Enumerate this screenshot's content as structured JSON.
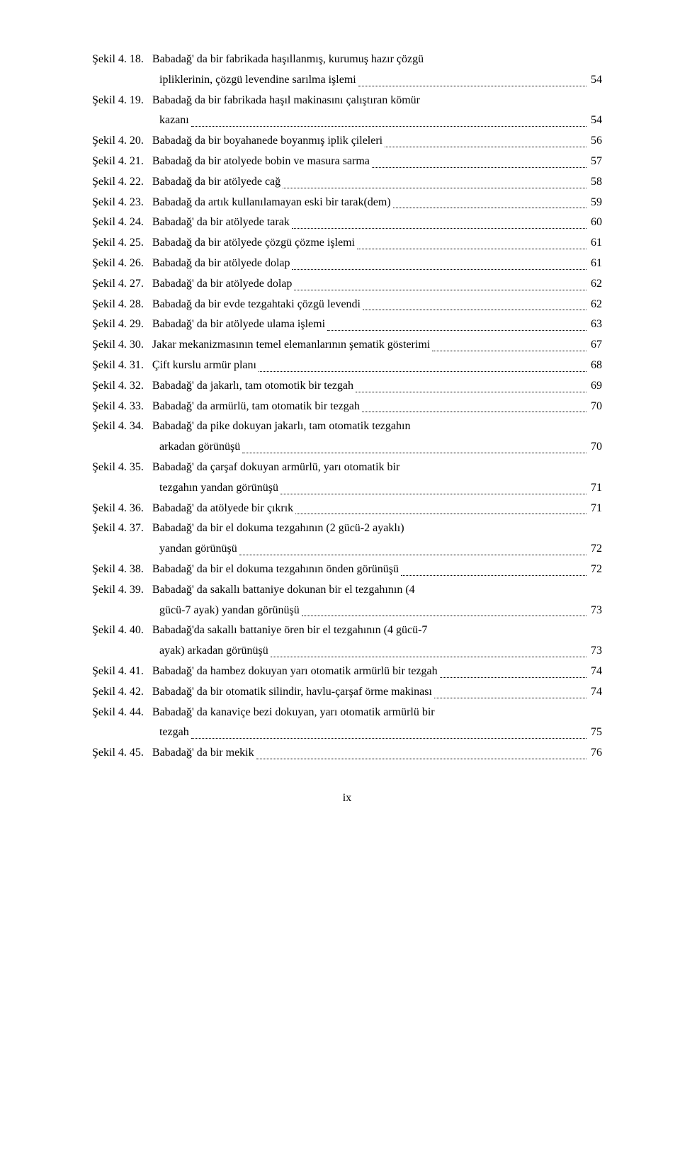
{
  "entries": [
    {
      "label": "Şekil 4. 18.",
      "lines": [
        "Babadağ' da bir fabrikada haşıllanmış, kurumuş hazır çözgü",
        "ipliklerinin, çözgü levendine sarılma işlemi"
      ],
      "page": "54"
    },
    {
      "label": "Şekil 4. 19.",
      "lines": [
        "Babadağ da bir fabrikada haşıl makinasını çalıştıran kömür",
        "kazanı"
      ],
      "page": "54"
    },
    {
      "label": "Şekil 4. 20.",
      "lines": [
        "Babadağ da bir boyahanede boyanmış iplik çileleri"
      ],
      "page": "56"
    },
    {
      "label": "Şekil 4. 21.",
      "lines": [
        "Babadağ da bir atolyede bobin ve masura sarma"
      ],
      "page": "57"
    },
    {
      "label": "Şekil 4. 22.",
      "lines": [
        "Babadağ da bir atölyede cağ"
      ],
      "page": "58"
    },
    {
      "label": "Şekil 4. 23.",
      "lines": [
        "Babadağ da artık kullanılamayan eski bir tarak(dem)"
      ],
      "page": "59"
    },
    {
      "label": "Şekil 4. 24.",
      "lines": [
        "Babadağ' da bir atölyede tarak"
      ],
      "page": "60"
    },
    {
      "label": "Şekil 4. 25.",
      "lines": [
        "Babadağ da bir atölyede çözgü çözme işlemi"
      ],
      "page": "61"
    },
    {
      "label": "Şekil 4. 26.",
      "lines": [
        "Babadağ da bir atölyede dolap"
      ],
      "page": "61"
    },
    {
      "label": "Şekil 4. 27.",
      "lines": [
        "Babadağ' da bir atölyede dolap"
      ],
      "page": "62"
    },
    {
      "label": "Şekil 4. 28.",
      "lines": [
        "Babadağ da bir evde tezgahtaki çözgü levendi"
      ],
      "page": "62"
    },
    {
      "label": "Şekil 4. 29.",
      "lines": [
        "Babadağ' da bir atölyede ulama işlemi"
      ],
      "page": "63"
    },
    {
      "label": "Şekil 4. 30.",
      "lines": [
        "Jakar mekanizmasının temel elemanlarının şematik gösterimi"
      ],
      "page": "67"
    },
    {
      "label": "Şekil 4. 31.",
      "lines": [
        "Çift kurslu armür planı"
      ],
      "page": "68"
    },
    {
      "label": "Şekil 4. 32.",
      "lines": [
        "Babadağ' da jakarlı, tam otomotik bir tezgah"
      ],
      "page": "69"
    },
    {
      "label": "Şekil 4. 33.",
      "lines": [
        "Babadağ' da armürlü, tam otomatik bir tezgah"
      ],
      "page": "70"
    },
    {
      "label": "Şekil 4. 34.",
      "lines": [
        "Babadağ' da pike dokuyan jakarlı, tam otomatik tezgahın",
        "arkadan görünüşü"
      ],
      "page": "70"
    },
    {
      "label": "Şekil 4. 35.",
      "lines": [
        "Babadağ' da çarşaf dokuyan armürlü, yarı otomatik  bir",
        "tezgahın yandan görünüşü"
      ],
      "page": "71"
    },
    {
      "label": "Şekil 4. 36.",
      "lines": [
        "Babadağ' da atölyede bir çıkrık"
      ],
      "page": "71"
    },
    {
      "label": "Şekil 4. 37.",
      "lines": [
        "Babadağ' da bir el dokuma tezgahının (2 gücü-2 ayaklı)",
        "yandan görünüşü"
      ],
      "page": "72"
    },
    {
      "label": "Şekil 4. 38.",
      "lines": [
        "Babadağ' da bir el dokuma tezgahının önden görünüşü"
      ],
      "page": "72"
    },
    {
      "label": "Şekil 4. 39.",
      "lines": [
        "Babadağ' da sakallı battaniye dokunan bir el tezgahının (4",
        "gücü-7 ayak) yandan görünüşü"
      ],
      "page": "73"
    },
    {
      "label": "Şekil 4. 40.",
      "lines": [
        "Babadağ'da sakallı battaniye ören bir el tezgahının (4 gücü-7",
        "ayak) arkadan görünüşü"
      ],
      "page": "73"
    },
    {
      "label": "Şekil 4. 41.",
      "lines": [
        "Babadağ' da hambez dokuyan yarı otomatik armürlü bir tezgah"
      ],
      "page": "74"
    },
    {
      "label": "Şekil 4. 42.",
      "lines": [
        "Babadağ' da bir otomatik silindir, havlu-çarşaf örme makinası"
      ],
      "page": "74"
    },
    {
      "label": "Şekil 4. 44.",
      "lines": [
        "Babadağ' da kanaviçe bezi dokuyan, yarı otomatik armürlü bir",
        "tezgah"
      ],
      "page": "75"
    },
    {
      "label": "Şekil 4. 45.",
      "lines": [
        "Babadağ' da bir mekik"
      ],
      "page": "76"
    }
  ],
  "page_number": "ix"
}
